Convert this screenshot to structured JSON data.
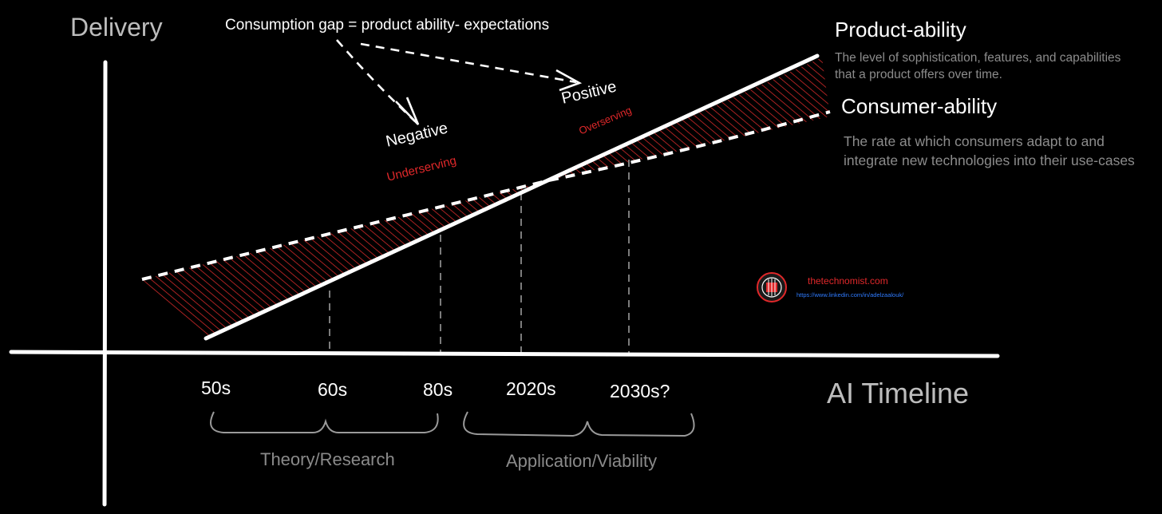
{
  "axes": {
    "y_title": "Delivery",
    "x_title": "AI Timeline"
  },
  "x_ticks": [
    "50s",
    "60s",
    "80s",
    "2020s",
    "2030s?"
  ],
  "eras": {
    "left": "Theory/Research",
    "right": "Application/Viability"
  },
  "annotation": {
    "formula": "Consumption gap = product ability- expectations",
    "negative": "Negative",
    "negative_sub": "Underserving",
    "positive": "Positive",
    "positive_sub": "Overserving"
  },
  "legend": {
    "product_title": "Product-ability",
    "product_desc": "The level of sophistication, features, and capabilities that a product offers over time.",
    "consumer_title": "Consumer-ability",
    "consumer_desc": "The rate at which consumers adapt to and integrate new technologies into their use-cases"
  },
  "branding": {
    "site": "thetechnomist.com",
    "url": "https://www.linkedin.com/in/adelzaalouk/"
  },
  "colors": {
    "background": "#000000",
    "line": "#ffffff",
    "hatch": "#d42a2a",
    "accent_text": "#e0282a",
    "muted_text": "#8c8c8c",
    "link": "#2f7bff"
  }
}
